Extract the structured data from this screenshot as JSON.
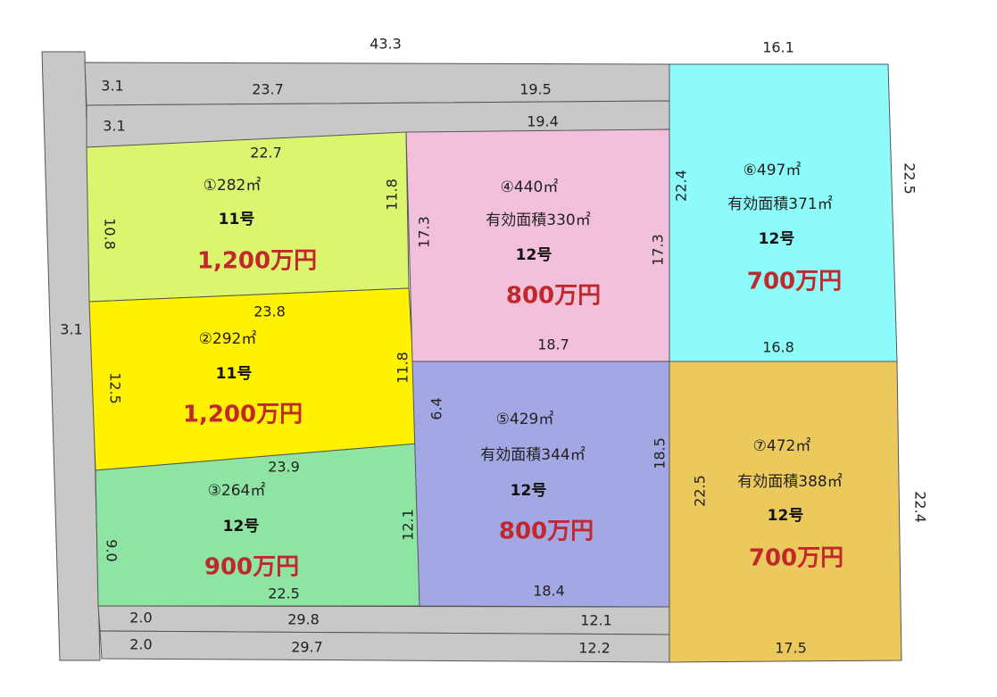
{
  "dimensions": {
    "top_left": "43.3",
    "top_right": "16.1",
    "left_road": "3.1"
  },
  "roads": [
    {
      "width": "3.1",
      "segments": [
        "23.7",
        "19.5"
      ]
    },
    {
      "width": "3.1",
      "segments": [
        "19.4"
      ]
    },
    {
      "width": "2.0",
      "segments": [
        "29.8",
        "12.1"
      ]
    },
    {
      "width": "2.0",
      "segments": [
        "29.7",
        "12.2"
      ]
    }
  ],
  "lots": [
    {
      "label": "①282㎡",
      "zone": "11号",
      "price": "1,200万円",
      "edges": [
        "22.7",
        "11.8",
        "10.8"
      ]
    },
    {
      "label": "②292㎡",
      "zone": "11号",
      "price": "1,200万円",
      "edges": [
        "23.8",
        "11.8",
        "12.5"
      ]
    },
    {
      "label": "③264㎡",
      "zone": "12号",
      "price": "900万円",
      "edges": [
        "23.9",
        "22.5",
        "12.1",
        "9.0"
      ]
    },
    {
      "label": "④440㎡",
      "effective": "有効面積330㎡",
      "zone": "12号",
      "price": "800万円",
      "edges": [
        "17.3",
        "17.3",
        "18.7"
      ]
    },
    {
      "label": "⑤429㎡",
      "effective": "有効面積344㎡",
      "zone": "12号",
      "price": "800万円",
      "edges": [
        "6.4",
        "18.5",
        "18.4"
      ]
    },
    {
      "label": "⑥497㎡",
      "effective": "有効面積371㎡",
      "zone": "12号",
      "price": "700万円",
      "edges": [
        "22.4",
        "22.5",
        "16.8"
      ]
    },
    {
      "label": "⑦472㎡",
      "effective": "有効面積388㎡",
      "zone": "12号",
      "price": "700万円",
      "edges": [
        "22.5",
        "22.4",
        "17.5"
      ]
    }
  ]
}
